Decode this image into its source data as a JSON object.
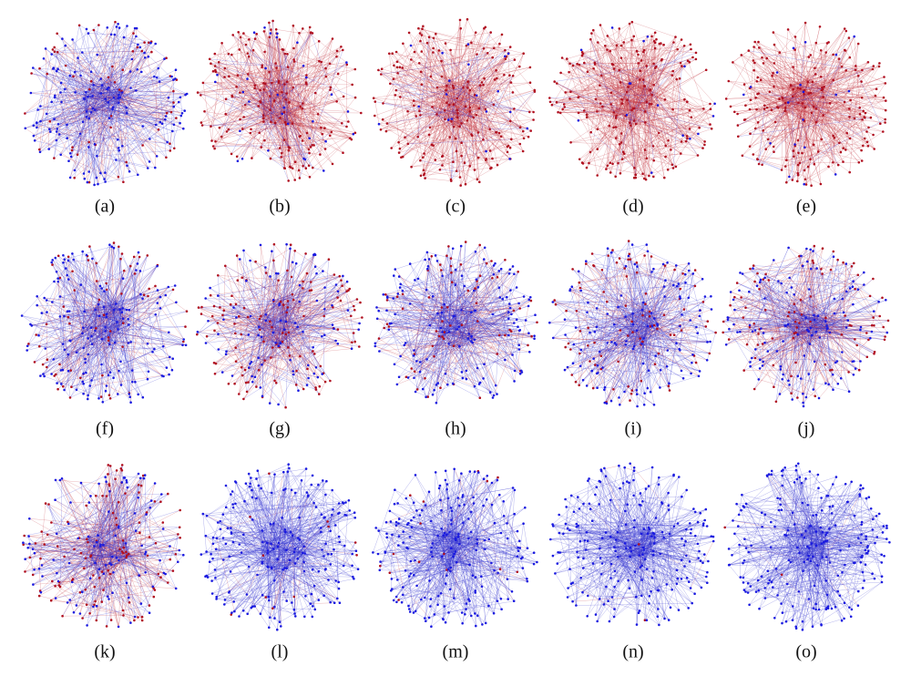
{
  "figure": {
    "panels": [
      {
        "label": "(a)"
      },
      {
        "label": "(b)"
      },
      {
        "label": "(c)"
      },
      {
        "label": "(d)"
      },
      {
        "label": "(e)"
      },
      {
        "label": "(f)"
      },
      {
        "label": "(g)"
      },
      {
        "label": "(h)"
      },
      {
        "label": "(i)"
      },
      {
        "label": "(j)"
      },
      {
        "label": "(k)"
      },
      {
        "label": "(l)"
      },
      {
        "label": "(m)"
      },
      {
        "label": "(n)"
      },
      {
        "label": "(o)"
      }
    ]
  }
}
